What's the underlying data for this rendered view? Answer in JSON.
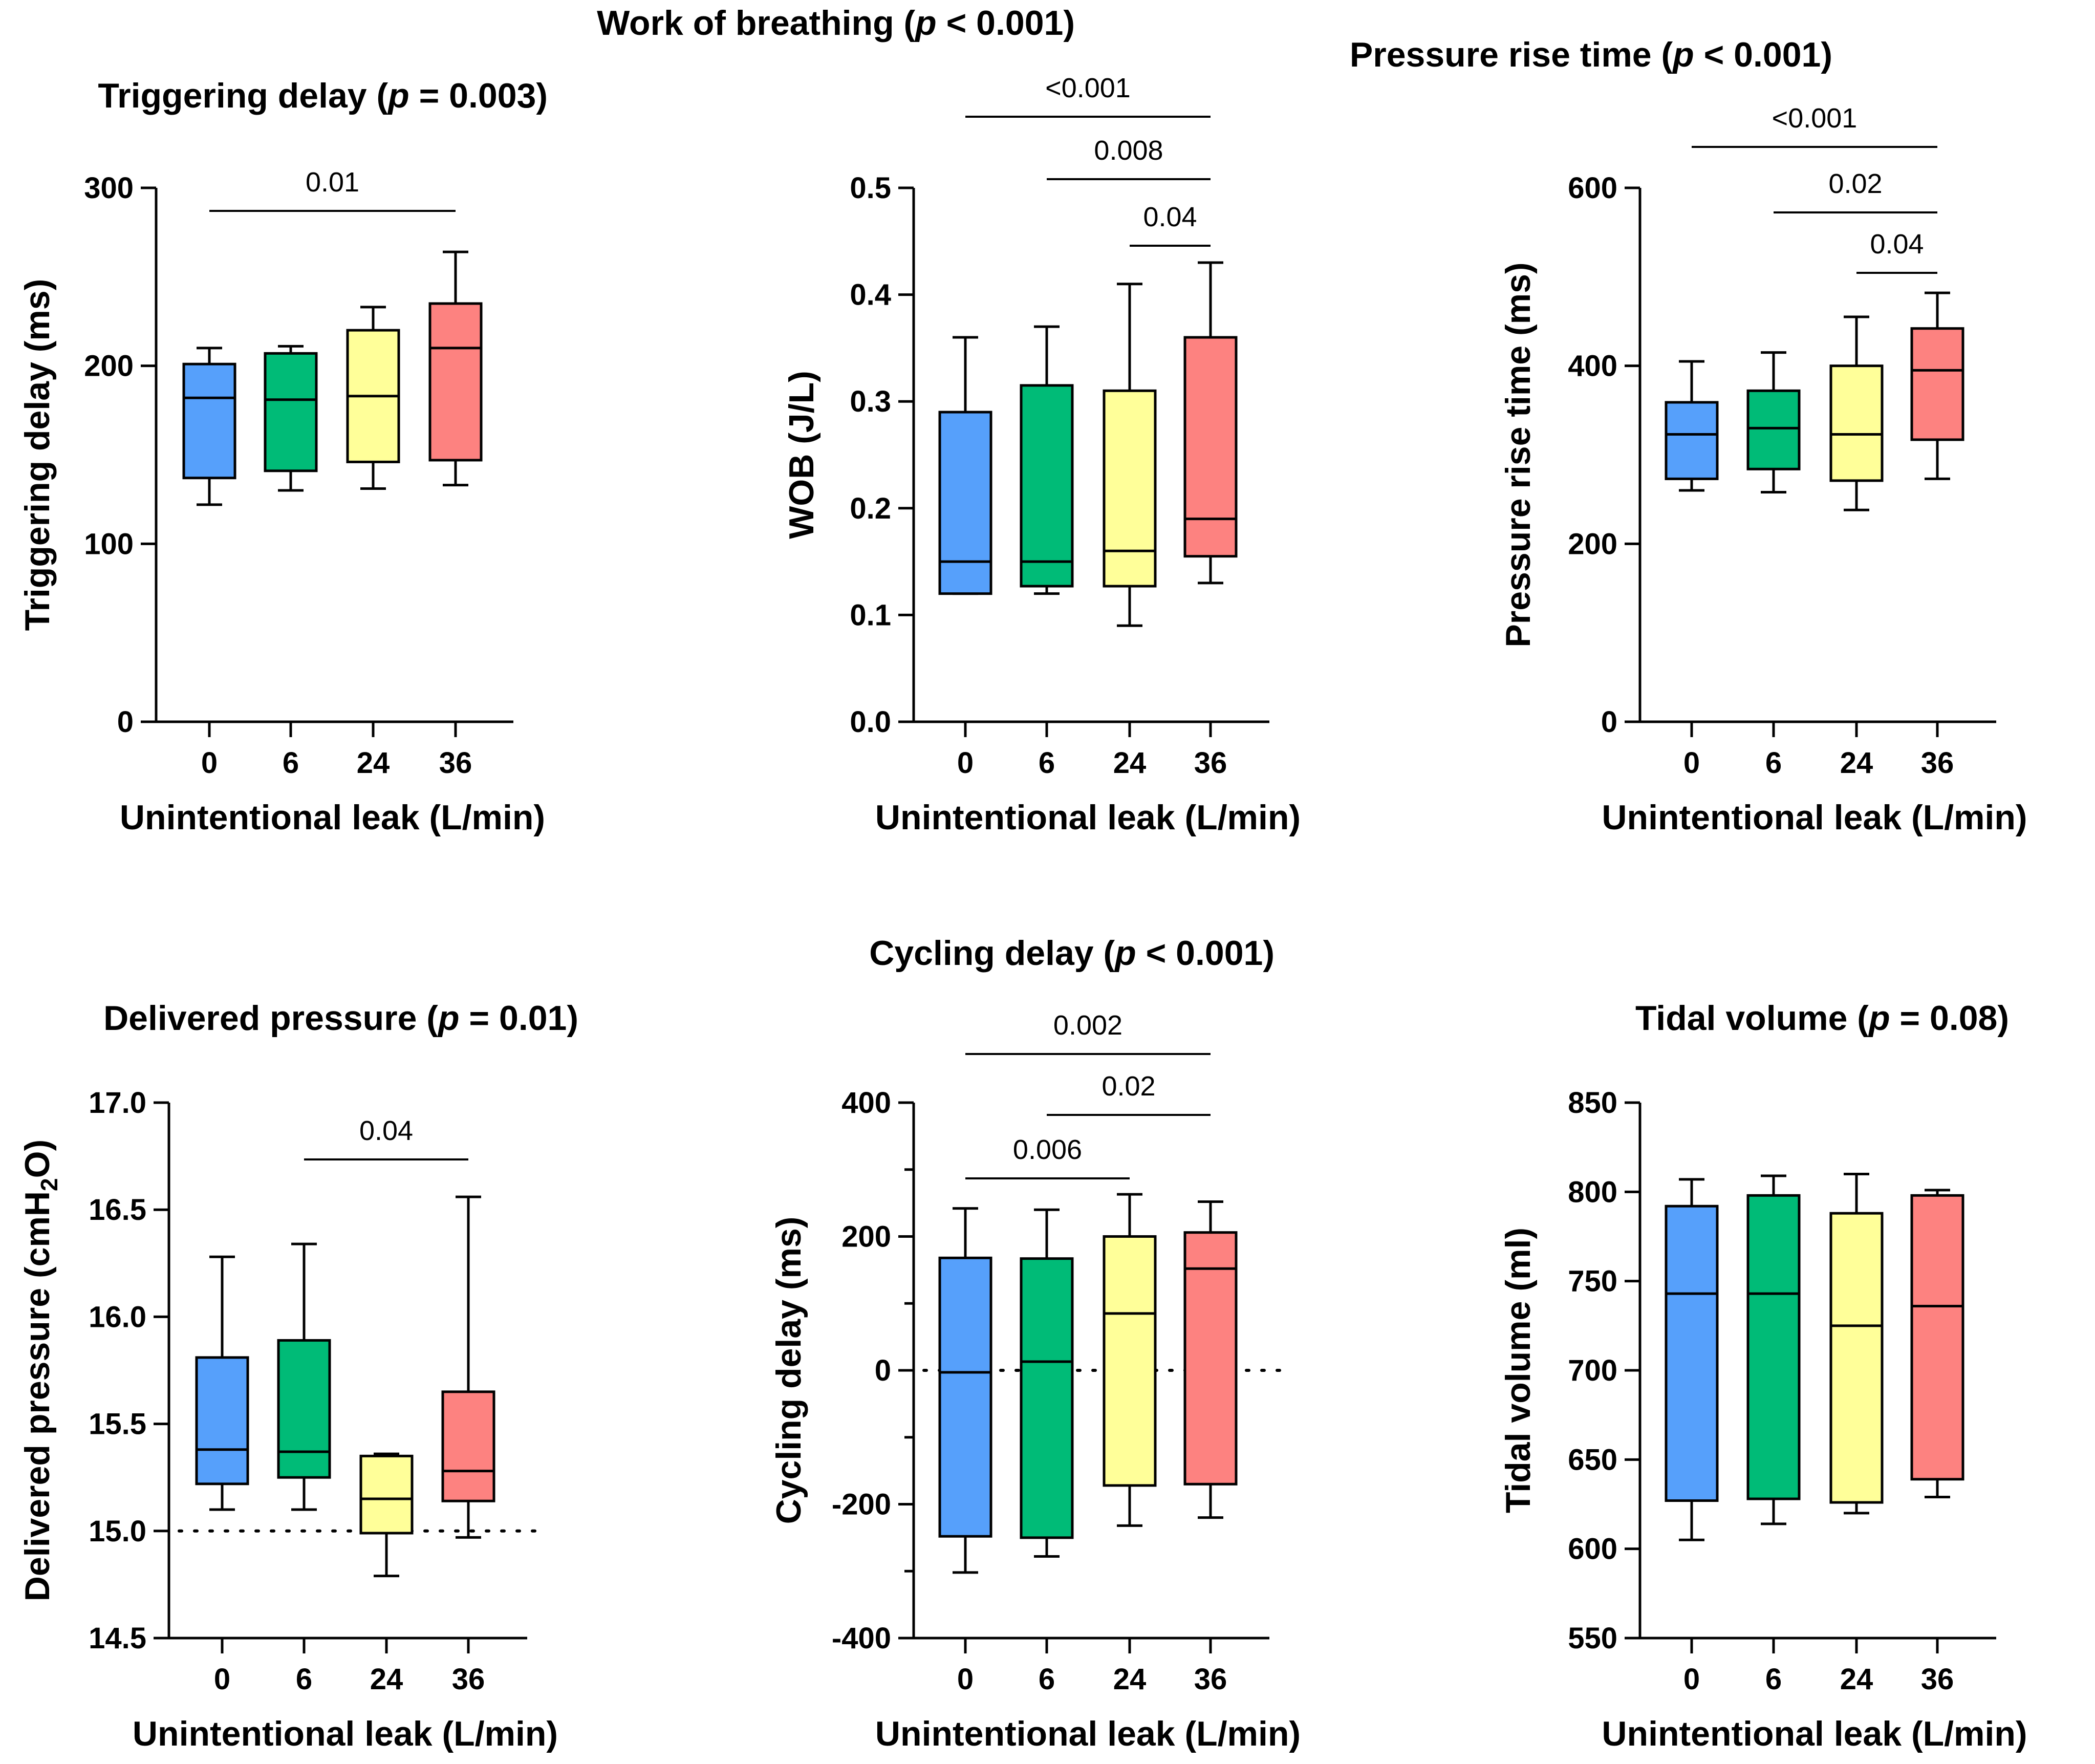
{
  "figure": {
    "category_colors": {
      "0": "#56a0fb",
      "6": "#00bb77",
      "24": "#ffff99",
      "36": "#fd8280"
    }
  },
  "chart_data": [
    {
      "type": "box",
      "title": "Triggering delay (p = 0.003)",
      "title_parts": [
        "Triggering delay (",
        "p",
        " = 0.003)"
      ],
      "ylabel": "Triggering delay (ms)",
      "ylabel_parts": [
        "Triggering delay (ms)"
      ],
      "xlabel": "Unintentional leak (L/min)",
      "categories": [
        "0",
        "6",
        "24",
        "36"
      ],
      "ylim": [
        0,
        300
      ],
      "yticks": [
        0,
        100,
        200,
        300
      ],
      "ytick_labels": [
        "0",
        "100",
        "200",
        "300"
      ],
      "minor_ticks": [],
      "reference_line": null,
      "boxes": [
        {
          "category": "0",
          "whisker_low": 122,
          "q1": 137,
          "median": 182,
          "q3": 201,
          "whisker_high": 210
        },
        {
          "category": "6",
          "whisker_low": 130,
          "q1": 141,
          "median": 181,
          "q3": 207,
          "whisker_high": 211
        },
        {
          "category": "24",
          "whisker_low": 131,
          "q1": 146,
          "median": 183,
          "q3": 220,
          "whisker_high": 233
        },
        {
          "category": "36",
          "whisker_low": 133,
          "q1": 147,
          "median": 210,
          "q3": 235,
          "whisker_high": 264
        }
      ],
      "significance": [
        {
          "from": "0",
          "to": "36",
          "label": "0.01"
        }
      ]
    },
    {
      "type": "box",
      "title": "Work of breathing (p < 0.001)",
      "title_parts": [
        "Work of breathing (",
        "p",
        " < 0.001)"
      ],
      "ylabel": "WOB (J/L)",
      "ylabel_parts": [
        "WOB (J/L)"
      ],
      "xlabel": "Unintentional leak (L/min)",
      "categories": [
        "0",
        "6",
        "24",
        "36"
      ],
      "ylim": [
        0,
        0.5
      ],
      "yticks": [
        0,
        0.1,
        0.2,
        0.3,
        0.4,
        0.5
      ],
      "ytick_labels": [
        "0.0",
        "0.1",
        "0.2",
        "0.3",
        "0.4",
        "0.5"
      ],
      "minor_ticks": [],
      "reference_line": null,
      "boxes": [
        {
          "category": "0",
          "whisker_low": 0.12,
          "q1": 0.12,
          "median": 0.15,
          "q3": 0.29,
          "whisker_high": 0.36
        },
        {
          "category": "6",
          "whisker_low": 0.12,
          "q1": 0.127,
          "median": 0.15,
          "q3": 0.315,
          "whisker_high": 0.37
        },
        {
          "category": "24",
          "whisker_low": 0.09,
          "q1": 0.127,
          "median": 0.16,
          "q3": 0.31,
          "whisker_high": 0.41
        },
        {
          "category": "36",
          "whisker_low": 0.13,
          "q1": 0.155,
          "median": 0.19,
          "q3": 0.36,
          "whisker_high": 0.43
        }
      ],
      "significance": [
        {
          "from": "0",
          "to": "36",
          "label": "<0.001"
        },
        {
          "from": "6",
          "to": "36",
          "label": "0.008"
        },
        {
          "from": "24",
          "to": "36",
          "label": "0.04"
        }
      ]
    },
    {
      "type": "box",
      "title": "Pressure rise time (p < 0.001)",
      "title_parts": [
        "Pressure rise time (",
        "p",
        " < 0.001)"
      ],
      "ylabel": "Pressure rise time (ms)",
      "ylabel_parts": [
        "Pressure rise time (ms)"
      ],
      "xlabel": "Unintentional leak (L/min)",
      "categories": [
        "0",
        "6",
        "24",
        "36"
      ],
      "ylim": [
        0,
        600
      ],
      "yticks": [
        0,
        200,
        400,
        600
      ],
      "ytick_labels": [
        "0",
        "200",
        "400",
        "600"
      ],
      "minor_ticks": [],
      "reference_line": null,
      "boxes": [
        {
          "category": "0",
          "whisker_low": 260,
          "q1": 273,
          "median": 323,
          "q3": 359,
          "whisker_high": 405
        },
        {
          "category": "6",
          "whisker_low": 258,
          "q1": 284,
          "median": 330,
          "q3": 372,
          "whisker_high": 415
        },
        {
          "category": "24",
          "whisker_low": 238,
          "q1": 271,
          "median": 323,
          "q3": 400,
          "whisker_high": 455
        },
        {
          "category": "36",
          "whisker_low": 273,
          "q1": 317,
          "median": 395,
          "q3": 442,
          "whisker_high": 482
        }
      ],
      "significance": [
        {
          "from": "0",
          "to": "36",
          "label": "<0.001"
        },
        {
          "from": "6",
          "to": "36",
          "label": "0.02"
        },
        {
          "from": "24",
          "to": "36",
          "label": "0.04"
        }
      ]
    },
    {
      "type": "box",
      "title": "Delivered pressure (p = 0.01)",
      "title_parts": [
        "Delivered pressure (",
        "p",
        " = 0.01)"
      ],
      "ylabel": "Delivered pressure (cmH2O)",
      "ylabel_parts": [
        "Delivered pressure (cmH",
        "2",
        "O)"
      ],
      "xlabel": "Unintentional leak (L/min)",
      "categories": [
        "0",
        "6",
        "24",
        "36"
      ],
      "ylim": [
        14.5,
        17.0
      ],
      "yticks": [
        14.5,
        15.0,
        15.5,
        16.0,
        16.5,
        17.0
      ],
      "ytick_labels": [
        "14.5",
        "15.0",
        "15.5",
        "16.0",
        "16.5",
        "17.0"
      ],
      "minor_ticks": [],
      "reference_line": 15.0,
      "boxes": [
        {
          "category": "0",
          "whisker_low": 15.1,
          "q1": 15.22,
          "median": 15.38,
          "q3": 15.81,
          "whisker_high": 16.28
        },
        {
          "category": "6",
          "whisker_low": 15.1,
          "q1": 15.25,
          "median": 15.37,
          "q3": 15.89,
          "whisker_high": 16.34
        },
        {
          "category": "24",
          "whisker_low": 14.79,
          "q1": 14.99,
          "median": 15.15,
          "q3": 15.35,
          "whisker_high": 15.36
        },
        {
          "category": "36",
          "whisker_low": 14.97,
          "q1": 15.14,
          "median": 15.28,
          "q3": 15.65,
          "whisker_high": 16.56
        }
      ],
      "significance": [
        {
          "from": "6",
          "to": "36",
          "label": "0.04"
        }
      ]
    },
    {
      "type": "box",
      "title": "Cycling delay (p < 0.001)",
      "title_parts": [
        "Cycling delay (",
        "p",
        " < 0.001)"
      ],
      "ylabel": "Cycling delay (ms)",
      "ylabel_parts": [
        "Cycling delay (ms)"
      ],
      "xlabel": "Unintentional leak (L/min)",
      "categories": [
        "0",
        "6",
        "24",
        "36"
      ],
      "ylim": [
        -400,
        400
      ],
      "yticks": [
        -400,
        -200,
        0,
        200,
        400
      ],
      "ytick_labels": [
        "-400",
        "-200",
        "0",
        "200",
        "400"
      ],
      "minor_ticks": [
        -300,
        -100,
        100,
        300
      ],
      "reference_line": 0,
      "boxes": [
        {
          "category": "0",
          "whisker_low": -302,
          "q1": -248,
          "median": -3,
          "q3": 168,
          "whisker_high": 242
        },
        {
          "category": "6",
          "whisker_low": -278,
          "q1": -250,
          "median": 13,
          "q3": 167,
          "whisker_high": 240
        },
        {
          "category": "24",
          "whisker_low": -232,
          "q1": -172,
          "median": 85,
          "q3": 200,
          "whisker_high": 263
        },
        {
          "category": "36",
          "whisker_low": -220,
          "q1": -170,
          "median": 152,
          "q3": 206,
          "whisker_high": 252
        }
      ],
      "significance": [
        {
          "from": "0",
          "to": "36",
          "label": "0.002"
        },
        {
          "from": "6",
          "to": "36",
          "label": "0.02"
        },
        {
          "from": "0",
          "to": "24",
          "label": "0.006"
        }
      ]
    },
    {
      "type": "box",
      "title": "Tidal volume (p = 0.08)",
      "title_parts": [
        "Tidal volume (",
        "p",
        " = 0.08)"
      ],
      "ylabel": "Tidal volume (ml)",
      "ylabel_parts": [
        "Tidal volume (ml)"
      ],
      "xlabel": "Unintentional leak (L/min)",
      "categories": [
        "0",
        "6",
        "24",
        "36"
      ],
      "ylim": [
        550,
        850
      ],
      "yticks": [
        550,
        600,
        650,
        700,
        750,
        800,
        850
      ],
      "ytick_labels": [
        "550",
        "600",
        "650",
        "700",
        "750",
        "800",
        "850"
      ],
      "minor_ticks": [],
      "reference_line": null,
      "boxes": [
        {
          "category": "0",
          "whisker_low": 605,
          "q1": 627,
          "median": 743,
          "q3": 792,
          "whisker_high": 807
        },
        {
          "category": "6",
          "whisker_low": 614,
          "q1": 628,
          "median": 743,
          "q3": 798,
          "whisker_high": 809
        },
        {
          "category": "24",
          "whisker_low": 620,
          "q1": 626,
          "median": 725,
          "q3": 788,
          "whisker_high": 810
        },
        {
          "category": "36",
          "whisker_low": 629,
          "q1": 639,
          "median": 736,
          "q3": 798,
          "whisker_high": 801
        }
      ],
      "significance": []
    }
  ]
}
